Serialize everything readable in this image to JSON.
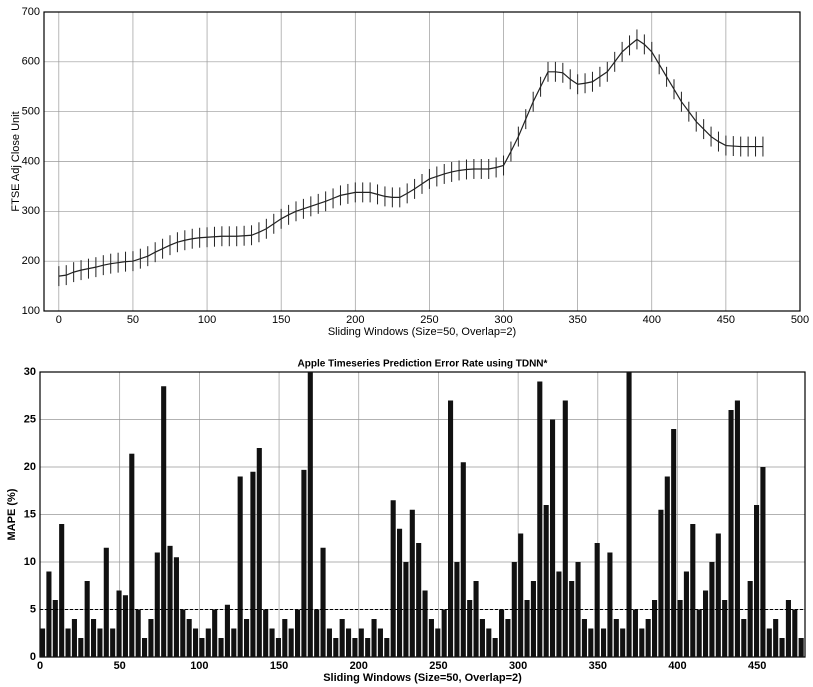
{
  "chart_data": [
    {
      "type": "errorbar_line",
      "ylabel": "FTSE Adj Close Unit",
      "xlabel": "Sliding Windows (Size=50, Overlap=2)",
      "xlim": [
        -10,
        500
      ],
      "ylim": [
        100,
        700
      ],
      "xticks": [
        0,
        50,
        100,
        150,
        200,
        250,
        300,
        350,
        400,
        450,
        500
      ],
      "yticks": [
        100,
        200,
        300,
        400,
        500,
        600,
        700
      ],
      "grid": true,
      "series": [
        {
          "color": "#222222",
          "error": 20,
          "x": [
            0,
            5,
            10,
            15,
            20,
            25,
            30,
            35,
            40,
            45,
            50,
            55,
            60,
            65,
            70,
            75,
            80,
            85,
            90,
            95,
            100,
            105,
            110,
            115,
            120,
            125,
            130,
            135,
            140,
            145,
            150,
            155,
            160,
            165,
            170,
            175,
            180,
            185,
            190,
            195,
            200,
            205,
            210,
            215,
            220,
            225,
            230,
            235,
            240,
            245,
            250,
            255,
            260,
            265,
            270,
            275,
            280,
            285,
            290,
            295,
            300,
            305,
            310,
            315,
            320,
            325,
            330,
            335,
            340,
            345,
            350,
            355,
            360,
            365,
            370,
            375,
            380,
            385,
            390,
            395,
            400,
            405,
            410,
            415,
            420,
            425,
            430,
            435,
            440,
            445,
            450,
            455,
            460,
            465,
            470,
            475
          ],
          "values": [
            170,
            172,
            178,
            182,
            185,
            188,
            192,
            195,
            197,
            199,
            200,
            205,
            210,
            218,
            225,
            232,
            238,
            242,
            245,
            247,
            248,
            249,
            250,
            250,
            250,
            251,
            252,
            258,
            265,
            275,
            285,
            293,
            300,
            305,
            310,
            315,
            320,
            326,
            332,
            335,
            338,
            338,
            338,
            334,
            330,
            328,
            328,
            336,
            345,
            355,
            365,
            370,
            375,
            379,
            382,
            384,
            385,
            385,
            385,
            388,
            392,
            420,
            450,
            485,
            520,
            550,
            580,
            580,
            578,
            565,
            555,
            557,
            560,
            570,
            580,
            600,
            620,
            633,
            645,
            635,
            620,
            595,
            570,
            545,
            520,
            500,
            480,
            465,
            450,
            440,
            432,
            431,
            430,
            430,
            430,
            430
          ]
        }
      ]
    },
    {
      "type": "bar",
      "title": "Apple Timeseries Prediction Error Rate using TDNN*",
      "ylabel": "MAPE (%)",
      "xlabel": "Sliding Windows (Size=50, Overlap=2)",
      "xlim": [
        0,
        480
      ],
      "ylim": [
        0,
        30
      ],
      "xticks": [
        0,
        50,
        100,
        150,
        200,
        250,
        300,
        350,
        400,
        450
      ],
      "yticks": [
        0,
        5,
        10,
        15,
        20,
        25,
        30
      ],
      "grid": true,
      "hline": 5,
      "series": [
        {
          "color": "#111111",
          "x": [
            0,
            4,
            8,
            12,
            16,
            20,
            24,
            28,
            32,
            36,
            40,
            44,
            48,
            52,
            56,
            60,
            64,
            68,
            72,
            76,
            80,
            84,
            88,
            92,
            96,
            100,
            104,
            108,
            112,
            116,
            120,
            124,
            128,
            132,
            136,
            140,
            144,
            148,
            152,
            156,
            160,
            164,
            168,
            172,
            176,
            180,
            184,
            188,
            192,
            196,
            200,
            204,
            208,
            212,
            216,
            220,
            224,
            228,
            232,
            236,
            240,
            244,
            248,
            252,
            256,
            260,
            264,
            268,
            272,
            276,
            280,
            284,
            288,
            292,
            296,
            300,
            304,
            308,
            312,
            316,
            320,
            324,
            328,
            332,
            336,
            340,
            344,
            348,
            352,
            356,
            360,
            364,
            368,
            372,
            376,
            380,
            384,
            388,
            392,
            396,
            400,
            404,
            408,
            412,
            416,
            420,
            424,
            428,
            432,
            436,
            440,
            444,
            448,
            452,
            456,
            460,
            464,
            468,
            472,
            476
          ],
          "values": [
            3,
            9,
            6,
            14,
            3,
            4,
            2,
            8,
            4,
            3,
            11.5,
            3,
            7,
            6.5,
            21.4,
            5,
            2,
            4,
            11,
            28.5,
            11.7,
            10.5,
            5,
            4,
            3,
            2,
            3,
            5,
            2,
            5.5,
            3,
            19,
            4,
            19.5,
            22,
            5,
            3,
            2,
            4,
            3,
            5,
            19.7,
            30,
            5,
            11.5,
            3,
            2,
            4,
            3,
            2,
            3,
            2,
            4,
            3,
            2,
            16.5,
            13.5,
            10,
            15.5,
            12,
            7,
            4,
            3,
            5,
            27,
            10,
            20.5,
            6,
            8,
            4,
            3,
            2,
            5,
            4,
            10,
            13,
            6,
            8,
            29,
            16,
            25,
            9,
            27,
            8,
            10,
            4,
            3,
            12,
            3,
            11,
            4,
            3,
            30,
            5,
            3,
            4,
            6,
            15.5,
            19,
            24,
            6,
            9,
            14,
            5,
            7,
            10,
            13,
            6,
            26,
            27,
            4,
            8,
            16,
            20,
            3,
            4,
            2,
            6,
            5,
            2
          ]
        }
      ]
    }
  ]
}
